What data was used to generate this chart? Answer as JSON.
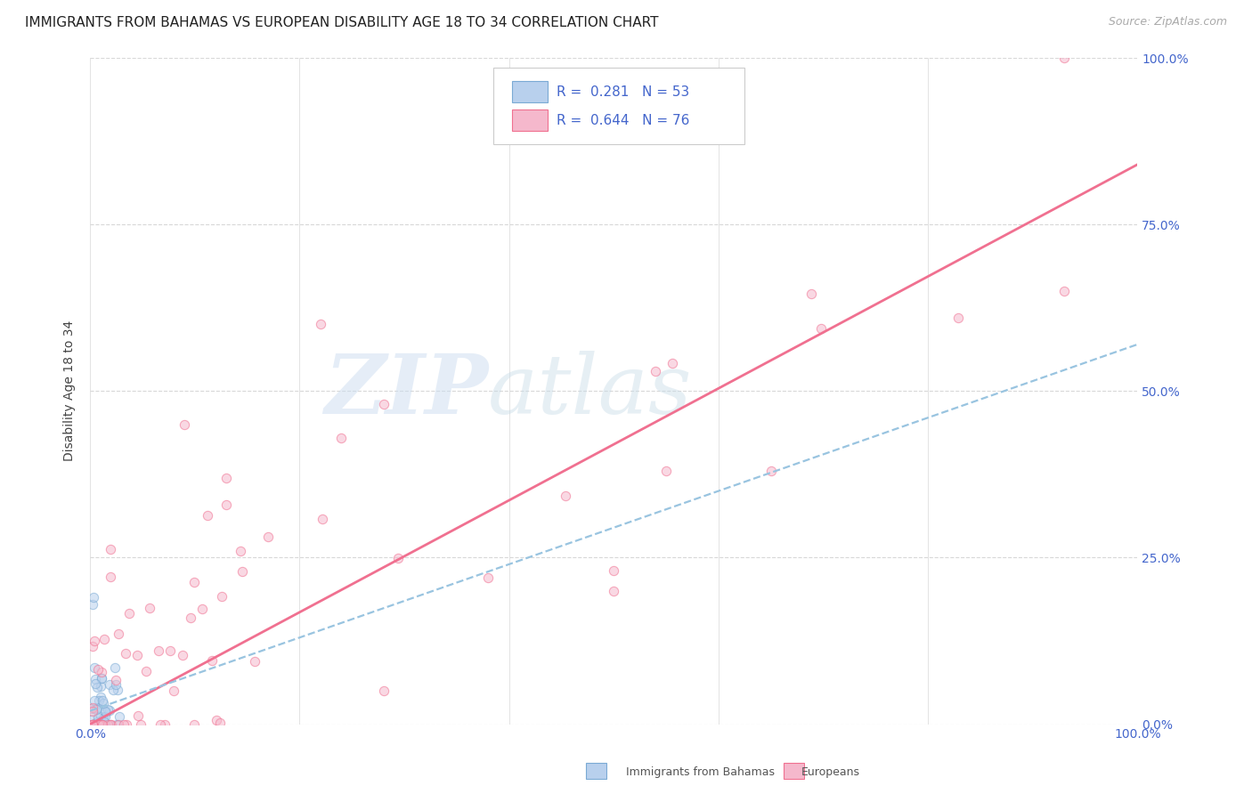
{
  "title": "IMMIGRANTS FROM BAHAMAS VS EUROPEAN DISABILITY AGE 18 TO 34 CORRELATION CHART",
  "source": "Source: ZipAtlas.com",
  "ylabel": "Disability Age 18 to 34",
  "watermark_zip": "ZIP",
  "watermark_atlas": "atlas",
  "background_color": "#ffffff",
  "grid_color": "#d8d8d8",
  "scatter_alpha": 0.55,
  "scatter_size": 55,
  "bahamas_scatter_color": "#b8d0ed",
  "bahamas_scatter_edge": "#7aaad4",
  "europeans_scatter_color": "#f5b8cc",
  "europeans_scatter_edge": "#f07090",
  "bahamas_line_color": "#99c4e0",
  "europeans_line_color": "#f07090",
  "title_fontsize": 11,
  "axis_label_fontsize": 10,
  "tick_fontsize": 10,
  "legend_fontsize": 11,
  "source_fontsize": 9,
  "bah_R": "0.281",
  "bah_N": "53",
  "eur_R": "0.644",
  "eur_N": "76",
  "legend_label_bah": "Immigrants from Bahamas",
  "legend_label_eur": "Europeans",
  "right_ytick_color": "#4466cc",
  "bottom_xtick_color": "#4466cc"
}
